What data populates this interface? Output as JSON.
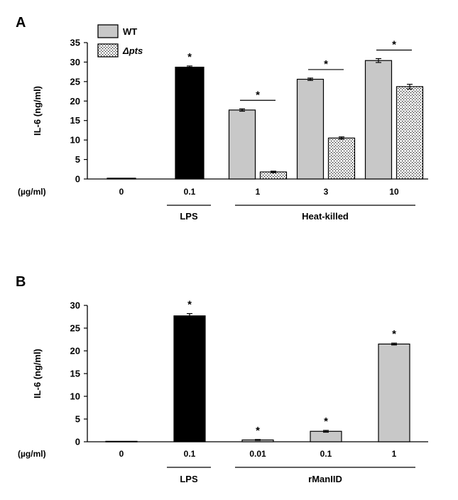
{
  "colors": {
    "wt": "#c8c8c8",
    "lps": "#000000",
    "dpts_hatch": "#000000",
    "stroke": "#000000"
  },
  "chart_data": [
    {
      "panel": "A",
      "type": "bar",
      "ylabel": "IL-6 (ng/ml)",
      "ylim": [
        0,
        35
      ],
      "yticks": [
        0,
        5,
        10,
        15,
        20,
        25,
        30,
        35
      ],
      "unit_label": "(µg/ml)",
      "categories": [
        "0",
        "0.1",
        "1",
        "3",
        "10"
      ],
      "groups": [
        {
          "label": "LPS",
          "from": 1,
          "to": 1
        },
        {
          "label": "Heat-killed",
          "from": 2,
          "to": 4
        }
      ],
      "legend": {
        "position": "top-left",
        "entries": [
          "WT",
          "Δpts"
        ]
      },
      "bars": [
        {
          "category": 0,
          "series": "WT",
          "value": 0.2,
          "error": 0.0,
          "style": "gray"
        },
        {
          "category": 1,
          "series": "LPS",
          "value": 28.7,
          "error": 0.3,
          "style": "black"
        },
        {
          "category": 2,
          "series": "WT",
          "value": 17.7,
          "error": 0.3,
          "style": "gray"
        },
        {
          "category": 2,
          "series": "Δpts",
          "value": 1.8,
          "error": 0.2,
          "style": "dotted"
        },
        {
          "category": 3,
          "series": "WT",
          "value": 25.6,
          "error": 0.3,
          "style": "gray"
        },
        {
          "category": 3,
          "series": "Δpts",
          "value": 10.5,
          "error": 0.3,
          "style": "dotted"
        },
        {
          "category": 4,
          "series": "WT",
          "value": 30.4,
          "error": 0.5,
          "style": "gray"
        },
        {
          "category": 4,
          "series": "Δpts",
          "value": 23.7,
          "error": 0.6,
          "style": "dotted"
        }
      ],
      "significance": [
        {
          "label": "*",
          "category": 1,
          "type": "single"
        },
        {
          "label": "*",
          "category": 2,
          "type": "pair"
        },
        {
          "label": "*",
          "category": 3,
          "type": "pair"
        },
        {
          "label": "*",
          "category": 4,
          "type": "pair"
        }
      ]
    },
    {
      "panel": "B",
      "type": "bar",
      "ylabel": "IL-6 (ng/ml)",
      "ylim": [
        0,
        30
      ],
      "yticks": [
        0,
        5,
        10,
        15,
        20,
        25,
        30
      ],
      "unit_label": "(µg/ml)",
      "categories": [
        "0",
        "0.1",
        "0.01",
        "0.1",
        "1"
      ],
      "groups": [
        {
          "label": "LPS",
          "from": 1,
          "to": 1
        },
        {
          "label": "rManIID",
          "from": 2,
          "to": 4
        }
      ],
      "bars": [
        {
          "category": 0,
          "value": 0.1,
          "error": 0.0,
          "style": "gray"
        },
        {
          "category": 1,
          "value": 27.7,
          "error": 0.5,
          "style": "black"
        },
        {
          "category": 2,
          "value": 0.4,
          "error": 0.1,
          "style": "gray"
        },
        {
          "category": 3,
          "value": 2.3,
          "error": 0.2,
          "style": "gray"
        },
        {
          "category": 4,
          "value": 21.5,
          "error": 0.2,
          "style": "gray"
        }
      ],
      "significance": [
        {
          "label": "*",
          "category": 1,
          "type": "single"
        },
        {
          "label": "*",
          "category": 2,
          "type": "single"
        },
        {
          "label": "*",
          "category": 3,
          "type": "single"
        },
        {
          "label": "*",
          "category": 4,
          "type": "single"
        }
      ]
    }
  ]
}
